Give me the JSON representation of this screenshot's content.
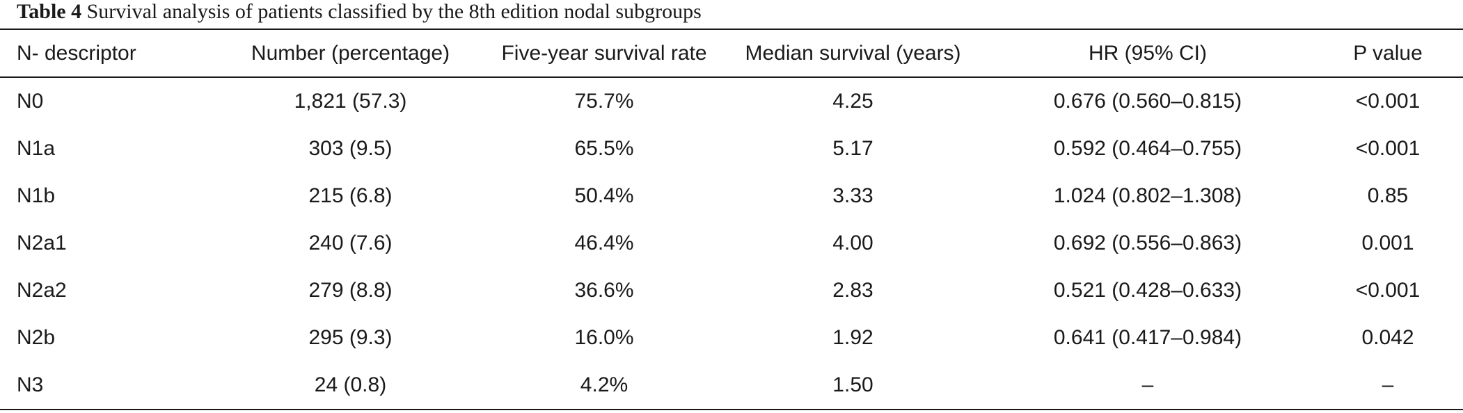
{
  "caption": {
    "label": "Table 4",
    "text": "Survival analysis of patients classified by the 8th edition nodal subgroups"
  },
  "table": {
    "headers": [
      "N- descriptor",
      "Number (percentage)",
      "Five-year survival rate",
      "Median survival (years)",
      "HR (95% CI)",
      "P value"
    ],
    "rows": [
      [
        "N0",
        "1,821 (57.3)",
        "75.7%",
        "4.25",
        "0.676 (0.560–0.815)",
        "<0.001"
      ],
      [
        "N1a",
        "303 (9.5)",
        "65.5%",
        "5.17",
        "0.592 (0.464–0.755)",
        "<0.001"
      ],
      [
        "N1b",
        "215 (6.8)",
        "50.4%",
        "3.33",
        "1.024 (0.802–1.308)",
        "0.85"
      ],
      [
        "N2a1",
        "240 (7.6)",
        "46.4%",
        "4.00",
        "0.692 (0.556–0.863)",
        "0.001"
      ],
      [
        "N2a2",
        "279 (8.8)",
        "36.6%",
        "2.83",
        "0.521 (0.428–0.633)",
        "<0.001"
      ],
      [
        "N2b",
        "295 (9.3)",
        "16.0%",
        "1.92",
        "0.641 (0.417–0.984)",
        "0.042"
      ],
      [
        "N3",
        "24 (0.8)",
        "4.2%",
        "1.50",
        "–",
        "–"
      ]
    ]
  }
}
